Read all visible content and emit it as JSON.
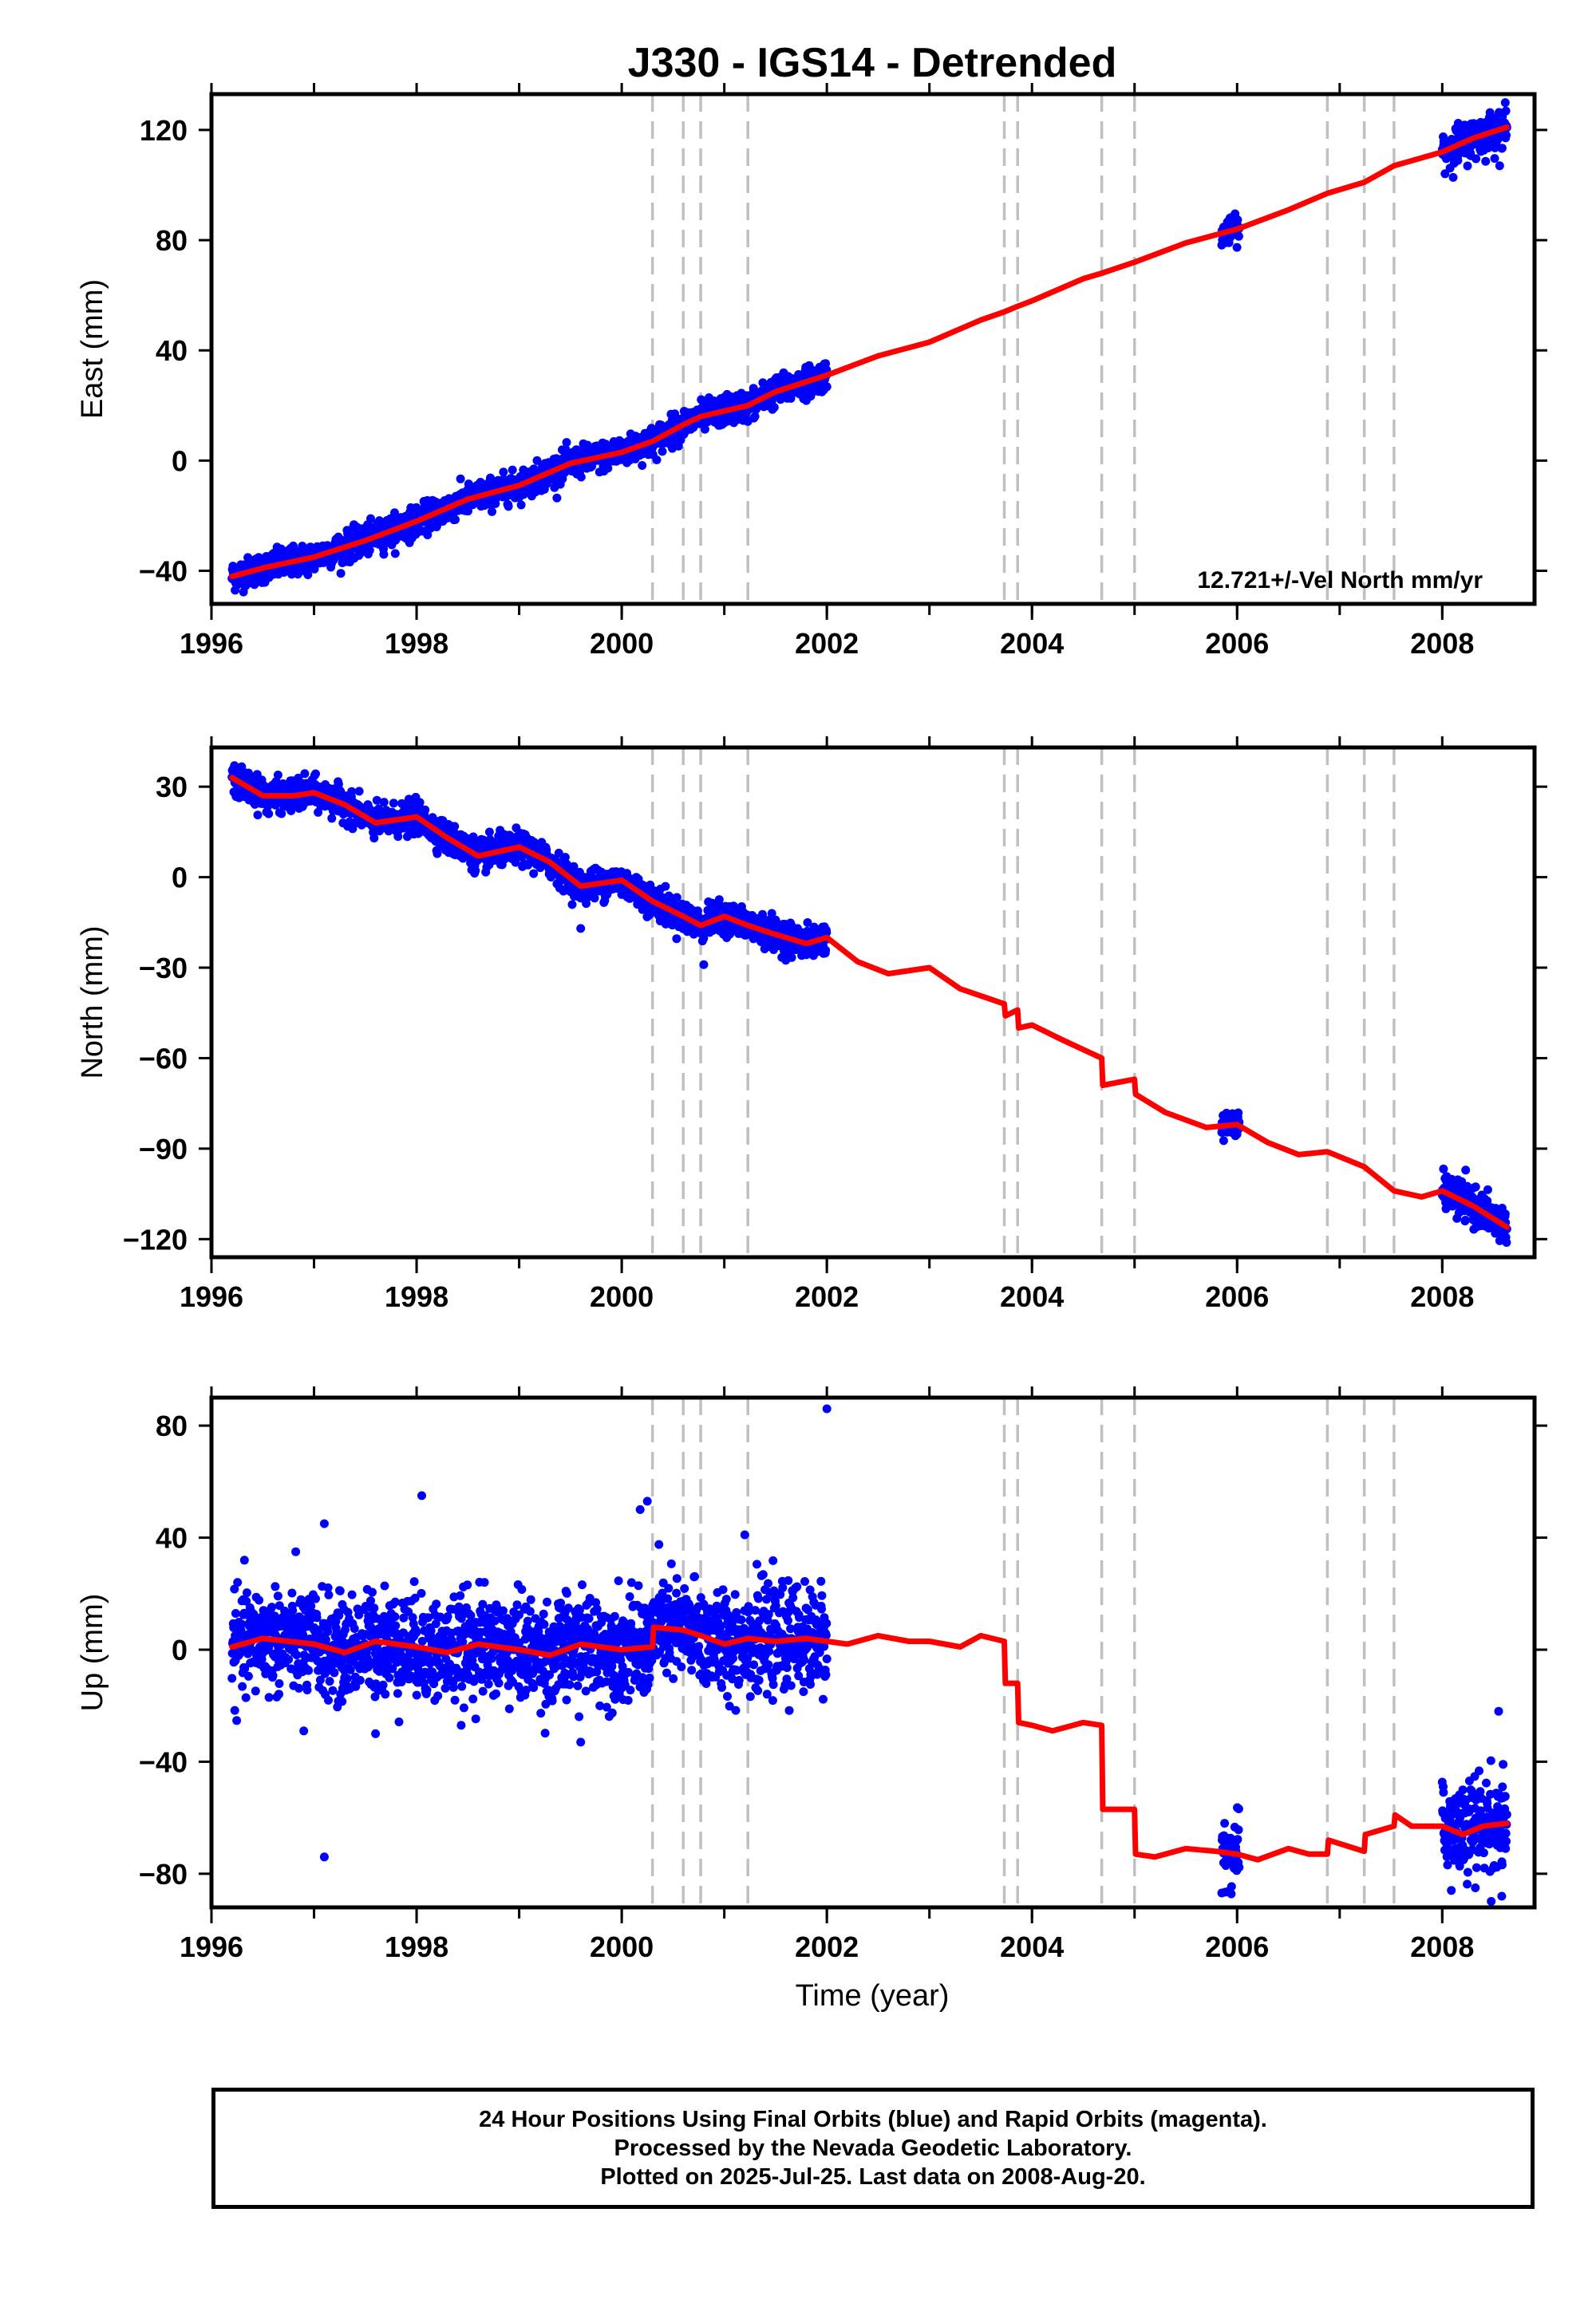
{
  "figure": {
    "title": "J330 - IGS14 - Detrended",
    "xlabel": "Time (year)",
    "footer": [
      "24 Hour Positions Using Final Orbits (blue) and Rapid Orbits (magenta).",
      "Processed by the Nevada Geodetic Laboratory.",
      "Plotted on 2025-Jul-25. Last data on 2008-Aug-20."
    ]
  },
  "colors": {
    "data": "#0000ff",
    "model": "#ff0000",
    "breaks": "#c0c0c0",
    "frame": "#000000"
  },
  "chart_data": [
    {
      "type": "scatter",
      "name": "east",
      "ylabel": "East (mm)",
      "annotation": "12.721+/-Vel North mm/yr",
      "xlim": [
        1996.0,
        2008.9
      ],
      "ylim": [
        -52,
        133
      ],
      "xticks": [
        1996,
        1998,
        2000,
        2002,
        2004,
        2006,
        2008
      ],
      "yticks": [
        -40,
        0,
        40,
        80,
        120
      ],
      "breaks": [
        2000.3,
        2000.6,
        2000.77,
        2001.23,
        2003.73,
        2003.86,
        2004.68,
        2005.0,
        2006.88,
        2007.24,
        2007.53
      ],
      "data_segments": [
        {
          "x0": 1996.2,
          "x1": 2002.0,
          "noise": 2.6,
          "outliers": []
        },
        {
          "x0": 2005.85,
          "x1": 2006.02,
          "noise": 2.2,
          "outliers": []
        },
        {
          "x0": 2008.0,
          "x1": 2008.63,
          "noise": 3.5,
          "outliers": []
        }
      ],
      "model": [
        [
          1996.2,
          -42
        ],
        [
          1996.5,
          -39
        ],
        [
          1997.0,
          -35
        ],
        [
          1997.5,
          -29
        ],
        [
          1998.0,
          -22
        ],
        [
          1998.5,
          -14
        ],
        [
          1999.0,
          -9
        ],
        [
          1999.5,
          -1
        ],
        [
          2000.0,
          3
        ],
        [
          2000.3,
          7
        ],
        [
          2000.6,
          13
        ],
        [
          2000.77,
          16
        ],
        [
          2001.23,
          20
        ],
        [
          2001.5,
          25
        ],
        [
          2002.0,
          31
        ],
        [
          2002.5,
          38
        ],
        [
          2003.0,
          43
        ],
        [
          2003.5,
          51
        ],
        [
          2003.73,
          54
        ],
        [
          2003.86,
          56
        ],
        [
          2004.0,
          58
        ],
        [
          2004.5,
          66
        ],
        [
          2004.68,
          68
        ],
        [
          2005.0,
          72
        ],
        [
          2005.5,
          79
        ],
        [
          2006.0,
          84
        ],
        [
          2006.5,
          91
        ],
        [
          2006.88,
          97
        ],
        [
          2007.24,
          101
        ],
        [
          2007.53,
          107
        ],
        [
          2008.0,
          112
        ],
        [
          2008.3,
          117
        ],
        [
          2008.63,
          121
        ]
      ]
    },
    {
      "type": "scatter",
      "name": "north",
      "ylabel": "North (mm)",
      "xlim": [
        1996.0,
        2008.9
      ],
      "ylim": [
        -126,
        43
      ],
      "xticks": [
        1996,
        1998,
        2000,
        2002,
        2004,
        2006,
        2008
      ],
      "yticks": [
        -120,
        -90,
        -60,
        -30,
        0,
        30
      ],
      "breaks": [
        2000.3,
        2000.6,
        2000.77,
        2001.23,
        2003.73,
        2003.86,
        2004.68,
        2005.0,
        2006.88,
        2007.24,
        2007.53
      ],
      "data_segments": [
        {
          "x0": 1996.2,
          "x1": 2002.0,
          "noise": 2.5,
          "outliers": [
            [
              2000.8,
              -29
            ],
            [
              1999.6,
              -17
            ]
          ]
        },
        {
          "x0": 2005.85,
          "x1": 2006.02,
          "noise": 2.0,
          "outliers": []
        },
        {
          "x0": 2008.0,
          "x1": 2008.63,
          "noise": 3.0,
          "outliers": []
        }
      ],
      "model": [
        [
          1996.2,
          33
        ],
        [
          1996.5,
          27
        ],
        [
          1996.8,
          27
        ],
        [
          1997.0,
          28
        ],
        [
          1997.3,
          24
        ],
        [
          1997.6,
          18
        ],
        [
          1998.0,
          20
        ],
        [
          1998.3,
          13
        ],
        [
          1998.6,
          7
        ],
        [
          1999.0,
          10
        ],
        [
          1999.3,
          5
        ],
        [
          1999.6,
          -3
        ],
        [
          2000.0,
          -1
        ],
        [
          2000.3,
          -8
        ],
        [
          2000.6,
          -13
        ],
        [
          2000.77,
          -16
        ],
        [
          2001.0,
          -13
        ],
        [
          2001.23,
          -16
        ],
        [
          2001.5,
          -19
        ],
        [
          2001.8,
          -22
        ],
        [
          2002.0,
          -20
        ],
        [
          2002.3,
          -28
        ],
        [
          2002.6,
          -32
        ],
        [
          2003.0,
          -30
        ],
        [
          2003.3,
          -37
        ],
        [
          2003.73,
          -42
        ],
        [
          2003.74,
          -46
        ],
        [
          2003.86,
          -44
        ],
        [
          2003.87,
          -50
        ],
        [
          2004.0,
          -49
        ],
        [
          2004.3,
          -54
        ],
        [
          2004.68,
          -60
        ],
        [
          2004.69,
          -69
        ],
        [
          2005.0,
          -67
        ],
        [
          2005.01,
          -72
        ],
        [
          2005.3,
          -78
        ],
        [
          2005.7,
          -83
        ],
        [
          2006.0,
          -82
        ],
        [
          2006.3,
          -88
        ],
        [
          2006.6,
          -92
        ],
        [
          2006.88,
          -91
        ],
        [
          2007.24,
          -96
        ],
        [
          2007.53,
          -104
        ],
        [
          2007.8,
          -106
        ],
        [
          2008.0,
          -104
        ],
        [
          2008.3,
          -109
        ],
        [
          2008.63,
          -116
        ]
      ]
    },
    {
      "type": "scatter",
      "name": "up",
      "ylabel": "Up (mm)",
      "xlim": [
        1996.0,
        2008.9
      ],
      "ylim": [
        -92,
        90
      ],
      "xticks": [
        1996,
        1998,
        2000,
        2002,
        2004,
        2006,
        2008
      ],
      "yticks": [
        -80,
        -40,
        0,
        40,
        80
      ],
      "breaks": [
        2000.3,
        2000.6,
        2000.77,
        2001.23,
        2003.73,
        2003.86,
        2004.68,
        2005.0,
        2006.88,
        2007.24,
        2007.53
      ],
      "data_segments": [
        {
          "x0": 1996.2,
          "x1": 2002.0,
          "noise": 9.0,
          "outliers": [
            [
              2002.0,
              86
            ],
            [
              1998.05,
              55
            ],
            [
              2000.25,
              53
            ],
            [
              2000.18,
              50
            ],
            [
              1997.1,
              45
            ],
            [
              2001.2,
              41
            ],
            [
              1997.1,
              -74
            ],
            [
              1997.6,
              -30
            ],
            [
              1999.6,
              -33
            ],
            [
              1996.9,
              -29
            ]
          ]
        },
        {
          "x0": 2005.85,
          "x1": 2006.02,
          "noise": 6.0,
          "outliers": []
        },
        {
          "x0": 2008.0,
          "x1": 2008.63,
          "noise": 9.0,
          "outliers": [
            [
              2008.55,
              -22
            ],
            [
              2008.58,
              -88
            ]
          ]
        }
      ],
      "model": [
        [
          1996.2,
          1
        ],
        [
          1996.5,
          4
        ],
        [
          1997.0,
          2
        ],
        [
          1997.3,
          -1
        ],
        [
          1997.6,
          3
        ],
        [
          1998.0,
          1
        ],
        [
          1998.3,
          -1
        ],
        [
          1998.6,
          2
        ],
        [
          1999.0,
          0
        ],
        [
          1999.3,
          -2
        ],
        [
          1999.6,
          2
        ],
        [
          2000.0,
          0
        ],
        [
          2000.3,
          1
        ],
        [
          2000.31,
          8
        ],
        [
          2000.6,
          7
        ],
        [
          2000.77,
          5
        ],
        [
          2001.0,
          2
        ],
        [
          2001.23,
          4
        ],
        [
          2001.5,
          3
        ],
        [
          2001.8,
          4
        ],
        [
          2002.0,
          3
        ],
        [
          2002.2,
          2
        ],
        [
          2002.5,
          5
        ],
        [
          2002.8,
          3
        ],
        [
          2003.0,
          3
        ],
        [
          2003.3,
          1
        ],
        [
          2003.5,
          5
        ],
        [
          2003.73,
          3
        ],
        [
          2003.74,
          -12
        ],
        [
          2003.86,
          -12
        ],
        [
          2003.87,
          -26
        ],
        [
          2004.0,
          -27
        ],
        [
          2004.2,
          -29
        ],
        [
          2004.5,
          -26
        ],
        [
          2004.68,
          -27
        ],
        [
          2004.69,
          -57
        ],
        [
          2005.0,
          -57
        ],
        [
          2005.01,
          -73
        ],
        [
          2005.2,
          -74
        ],
        [
          2005.5,
          -71
        ],
        [
          2005.8,
          -72
        ],
        [
          2006.0,
          -73
        ],
        [
          2006.2,
          -75
        ],
        [
          2006.5,
          -71
        ],
        [
          2006.7,
          -73
        ],
        [
          2006.88,
          -73
        ],
        [
          2006.89,
          -68
        ],
        [
          2007.24,
          -72
        ],
        [
          2007.25,
          -66
        ],
        [
          2007.53,
          -63
        ],
        [
          2007.54,
          -59
        ],
        [
          2007.7,
          -63
        ],
        [
          2008.0,
          -63
        ],
        [
          2008.2,
          -66
        ],
        [
          2008.4,
          -63
        ],
        [
          2008.63,
          -62
        ]
      ]
    }
  ]
}
